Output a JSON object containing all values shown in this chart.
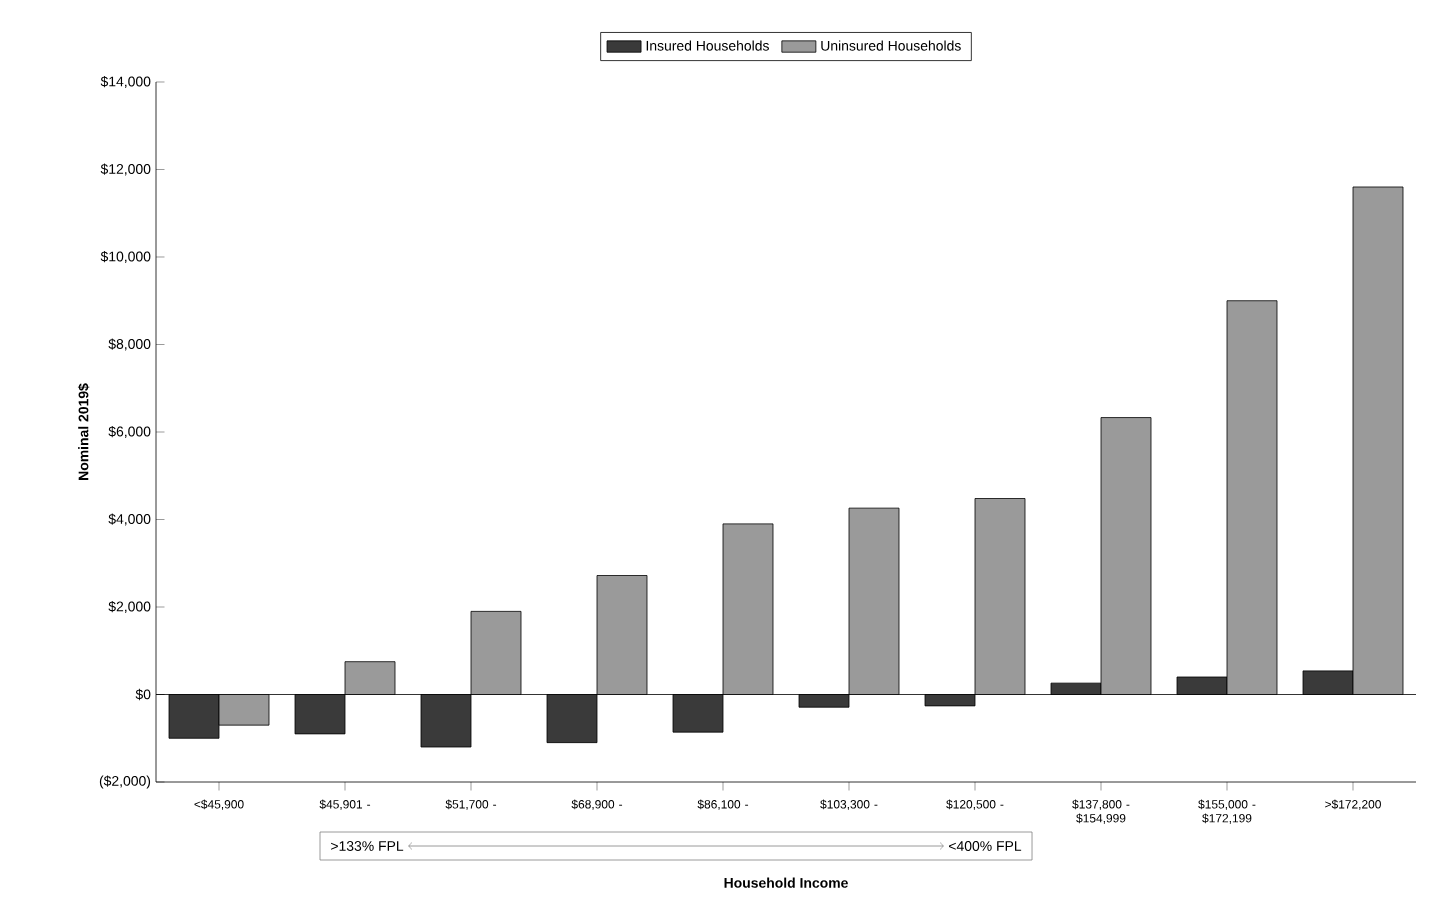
{
  "chart_data": {
    "type": "bar",
    "categories": [
      "<$45,900",
      "$45,901 -",
      "$51,700 -",
      "$68,900 -",
      "$86,100 -",
      "$103,300 -",
      "$120,500 -",
      "$137,800 - $154,999",
      "$155,000 - $172,199",
      ">$172,200"
    ],
    "series": [
      {
        "name": "Insured Households",
        "color": "#3a3a3a",
        "values": [
          -1000,
          -900,
          -1200,
          -1100,
          -860,
          -290,
          -260,
          260,
          400,
          540
        ]
      },
      {
        "name": "Uninsured Households",
        "color": "#9a9a9a",
        "values": [
          -700,
          750,
          1900,
          2720,
          3900,
          4260,
          4480,
          6330,
          9000,
          11600
        ]
      }
    ],
    "xlabel": "Household Income",
    "ylabel": "Nominal 2019$",
    "ylim": [
      -2000,
      14000
    ],
    "yticks": [
      {
        "value": -2000,
        "label": "($2,000)"
      },
      {
        "value": 0,
        "label": "$0"
      },
      {
        "value": 2000,
        "label": "$2,000"
      },
      {
        "value": 4000,
        "label": "$4,000"
      },
      {
        "value": 6000,
        "label": "$6,000"
      },
      {
        "value": 8000,
        "label": "$8,000"
      },
      {
        "value": 10000,
        "label": "$10,000"
      },
      {
        "value": 12000,
        "label": "$12,000"
      },
      {
        "value": 14000,
        "label": "$14,000"
      }
    ],
    "legend": "top",
    "annotations": [
      ">133% FPL",
      "<400% FPL"
    ]
  }
}
